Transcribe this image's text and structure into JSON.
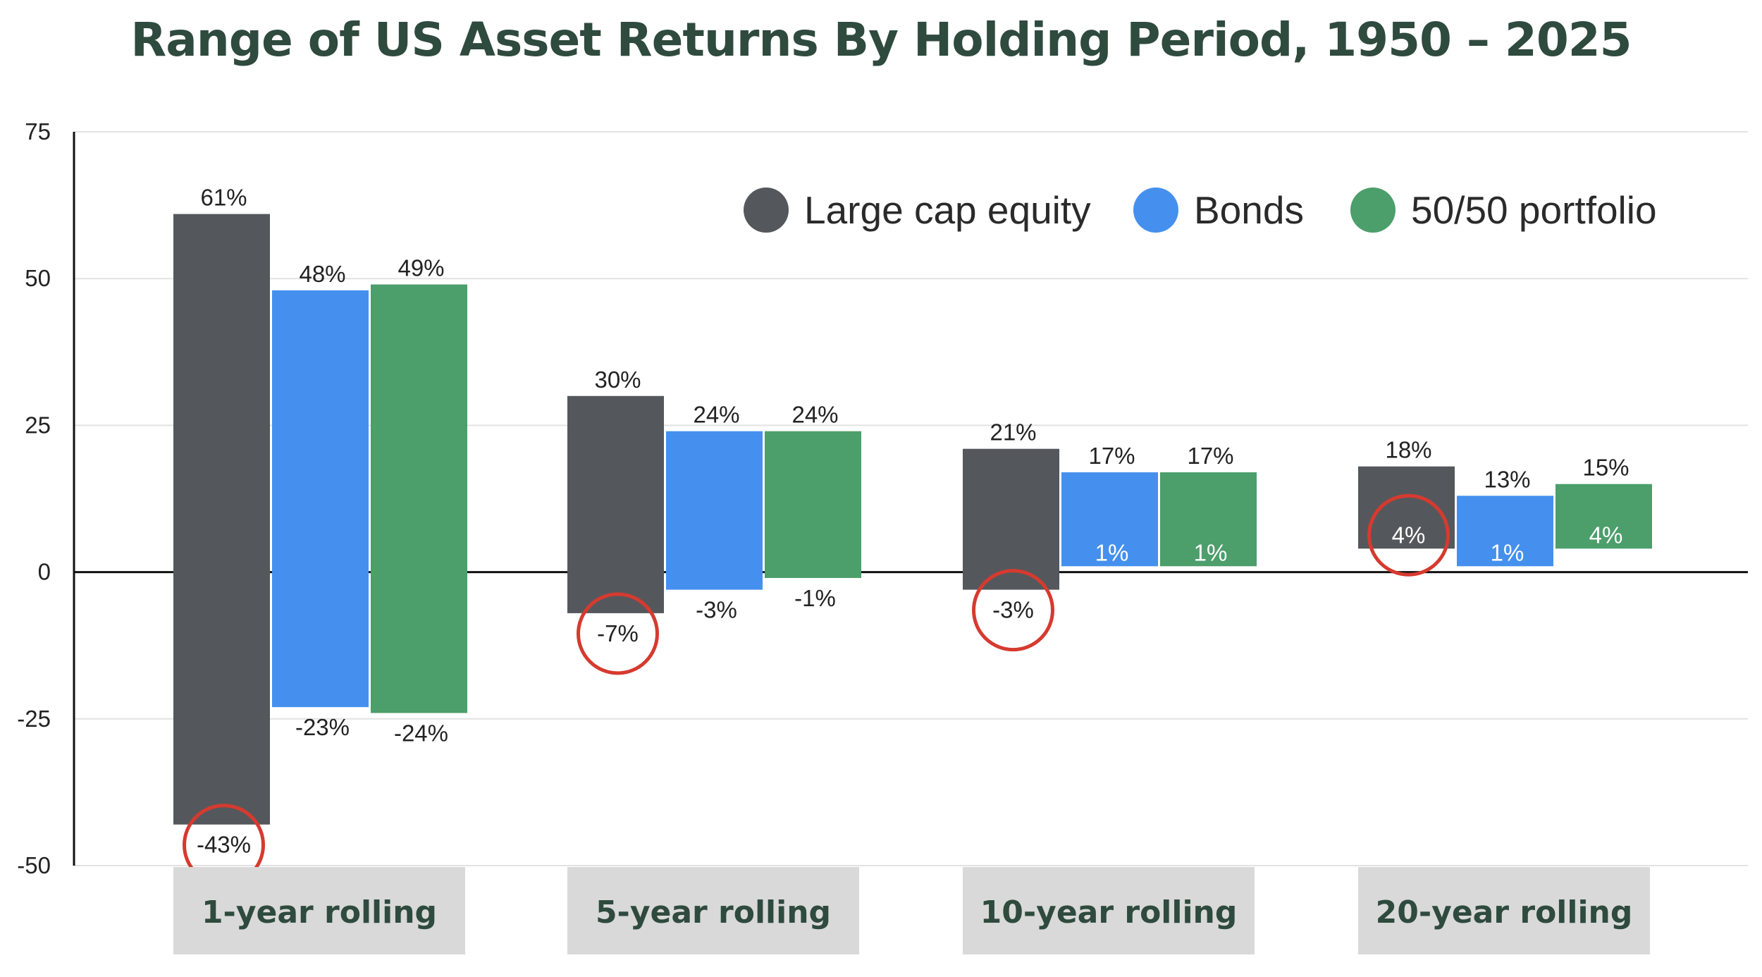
{
  "chart_data": {
    "type": "bar",
    "title": "Range of US Asset Returns By Holding Period, 1950 – 2025",
    "categories": [
      "1-year rolling",
      "5-year rolling",
      "10-year rolling",
      "20-year rolling"
    ],
    "y_ticks": [
      "75",
      "50",
      "25",
      "0",
      "-25",
      "-50"
    ],
    "ylim": [
      -50,
      75
    ],
    "grid": true,
    "legend_position": "top-right",
    "series": [
      {
        "name": "Large cap equity",
        "color": "#54585c",
        "high": [
          61,
          30,
          21,
          18
        ],
        "low": [
          -43,
          -7,
          -3,
          4
        ],
        "high_labels": [
          "61%",
          "30%",
          "21%",
          "18%"
        ],
        "low_labels": [
          "-43%",
          "-7%",
          "-3%",
          "4%"
        ]
      },
      {
        "name": "Bonds",
        "color": "#4590ee",
        "high": [
          48,
          24,
          17,
          13
        ],
        "low": [
          -23,
          -3,
          1,
          1
        ],
        "high_labels": [
          "48%",
          "24%",
          "17%",
          "13%"
        ],
        "low_labels": [
          "-23%",
          "-3%",
          "1%",
          "1%"
        ]
      },
      {
        "name": "50/50 portfolio",
        "color": "#4c9e6b",
        "high": [
          49,
          24,
          17,
          15
        ],
        "low": [
          -24,
          -1,
          1,
          4
        ],
        "high_labels": [
          "49%",
          "24%",
          "17%",
          "15%"
        ],
        "low_labels": [
          "-24%",
          "-1%",
          "1%",
          "4%"
        ]
      }
    ],
    "highlighted": [
      "-43%",
      "-7%",
      "-3%",
      "4%"
    ],
    "highlight_color": "#d63a2f",
    "category_box_color": "#d9d9d9"
  }
}
